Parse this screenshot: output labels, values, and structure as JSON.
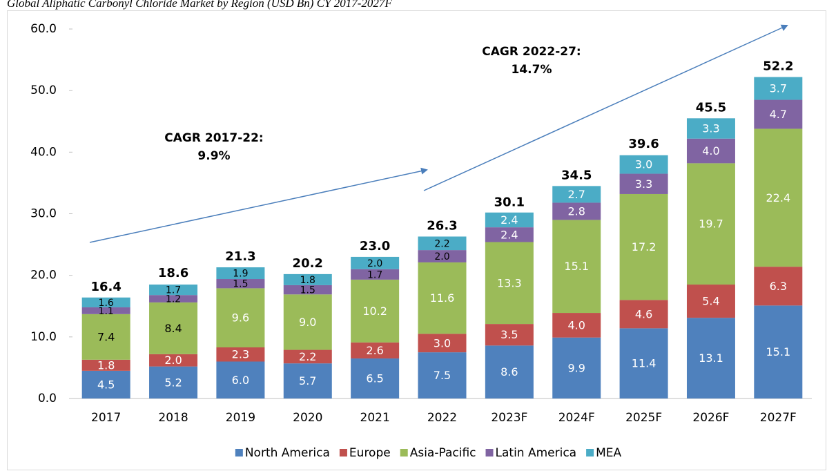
{
  "chart_data": {
    "type": "stacked_bar",
    "title": "Global Aliphatic Carbonyl Chloride Market by Region (USD Bn) CY 2017-2027F",
    "categories": [
      "2017",
      "2018",
      "2019",
      "2020",
      "2021",
      "2022",
      "2023F",
      "2024F",
      "2025F",
      "2026F",
      "2027F"
    ],
    "series": [
      {
        "name": "North America",
        "color": "#4f81bd",
        "values": [
          4.5,
          5.2,
          6.0,
          5.7,
          6.5,
          7.5,
          8.6,
          9.9,
          11.4,
          13.1,
          15.1
        ],
        "value_labels": [
          "4.5",
          "5.2",
          "6.0",
          "5.7",
          "6.5",
          "7.5",
          "8.6",
          "9.9",
          "11.4",
          "13.1",
          "15.1"
        ]
      },
      {
        "name": "Europe",
        "color": "#c0504d",
        "values": [
          1.8,
          2.0,
          2.3,
          2.2,
          2.6,
          3.0,
          3.5,
          4.0,
          4.6,
          5.4,
          6.3
        ],
        "value_labels": [
          "1.8",
          "2.0",
          "2.3",
          "2.2",
          "2.6",
          "3.0",
          "3.5",
          "4.0",
          "4.6",
          "5.4",
          "6.3"
        ]
      },
      {
        "name": "Asia-Pacific",
        "color": "#9bbb59",
        "values": [
          7.4,
          8.4,
          9.6,
          9.0,
          10.2,
          11.6,
          13.3,
          15.1,
          17.2,
          19.7,
          22.4
        ],
        "value_labels": [
          "7.4",
          "8.4",
          "9.6",
          "9.0",
          "10.2",
          "11.6",
          "13.3",
          "15.1",
          "17.2",
          "19.7",
          "22.4"
        ]
      },
      {
        "name": "Latin America",
        "color": "#8064a2",
        "values": [
          1.1,
          1.2,
          1.5,
          1.5,
          1.7,
          2.0,
          2.4,
          2.8,
          3.3,
          4.0,
          4.7
        ],
        "value_labels": [
          "1.1",
          "1.2",
          "1.5",
          "1.5",
          "1.7",
          "2.0",
          "2.4",
          "2.8",
          "3.3",
          "4.0",
          "4.7"
        ]
      },
      {
        "name": "MEA",
        "color": "#4bacc6",
        "values": [
          1.6,
          1.7,
          1.9,
          1.8,
          2.0,
          2.2,
          2.4,
          2.7,
          3.0,
          3.3,
          3.7
        ],
        "value_labels": [
          "1.6",
          "1.7",
          "1.9",
          "1.8",
          "2.0",
          "2.2",
          "2.4",
          "2.7",
          "3.0",
          "3.3",
          "3.7"
        ]
      }
    ],
    "totals": {
      "values": [
        16.4,
        18.6,
        21.3,
        20.2,
        23.0,
        26.3,
        30.1,
        34.5,
        39.6,
        45.5,
        52.2
      ],
      "value_labels": [
        "16.4",
        "18.6",
        "21.3",
        "20.2",
        "23.0",
        "26.3",
        "30.1",
        "34.5",
        "39.6",
        "45.5",
        "52.2"
      ]
    },
    "annotations": [
      [
        "CAGR 2017-22:",
        "9.9%"
      ],
      [
        "CAGR 2022-27:",
        "14.7%"
      ]
    ],
    "ylim": [
      0,
      60
    ],
    "yticks": [
      {
        "value": 0,
        "label": "0.0"
      },
      {
        "value": 10,
        "label": "10.0"
      },
      {
        "value": 20,
        "label": "20.0"
      },
      {
        "value": 30,
        "label": "30.0"
      },
      {
        "value": 40,
        "label": "40.0"
      },
      {
        "value": 50,
        "label": "50.0"
      },
      {
        "value": 60,
        "label": "60.0"
      }
    ],
    "legend": "bottom"
  }
}
